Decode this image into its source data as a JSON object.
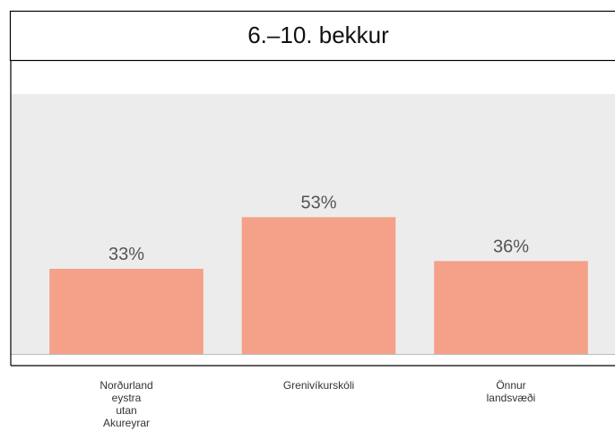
{
  "chart_data": {
    "type": "bar",
    "title": "6.–10. bekkur",
    "categories": [
      "Norðurland eystra utan Akureyrar",
      "Grenivíkurskóli",
      "Önnur landsvæði"
    ],
    "values": [
      33,
      53,
      36
    ],
    "value_labels": [
      "33%",
      "53%",
      "36%"
    ],
    "color": "#f5a088",
    "ylim": [
      0,
      100
    ]
  }
}
